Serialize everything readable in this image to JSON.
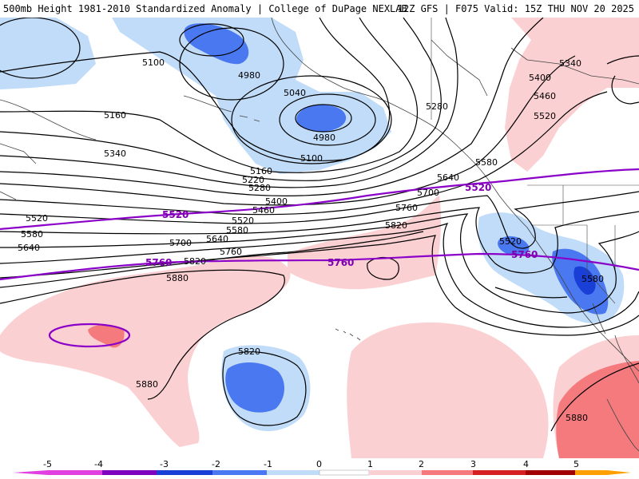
{
  "header": {
    "title_left": "500mb Height 1981-2010 Standardized Anomaly | College of DuPage NEXLAB",
    "title_right": "12Z GFS | F075 Valid: 15Z THU NOV 20 2025"
  },
  "colors": {
    "neg5": "#e040e0",
    "neg4": "#8000c0",
    "neg3": "#1a3fd6",
    "neg2": "#4a78f0",
    "neg1": "#c0dcf8",
    "zero": "#ffffff",
    "pos1": "#fbd0d2",
    "pos2": "#f47a7e",
    "pos3": "#d42020",
    "pos4": "#a00000",
    "pos5": "#ffa000",
    "contour": "#000000",
    "thick_contour": "#8a00c8",
    "coast": "#444444"
  },
  "contours": {
    "labels": [
      "5100",
      "4980",
      "4980",
      "5040",
      "5160",
      "5340",
      "5280",
      "5100",
      "5160",
      "5220",
      "5280",
      "5400",
      "5460",
      "5520",
      "5580",
      "5640",
      "5700",
      "5760",
      "5820",
      "5880",
      "5880",
      "5520",
      "5580",
      "5640",
      "5700",
      "5760",
      "5820",
      "5640",
      "5520",
      "5580",
      "5340",
      "5400",
      "5460",
      "5520",
      "5580",
      "5880",
      "5820"
    ]
  },
  "thickness": {
    "labels": [
      "5520",
      "5520",
      "5760",
      "5760",
      "5760"
    ]
  },
  "colorbar": {
    "ticks": [
      "-5",
      "-4",
      "-3",
      "-2",
      "-1",
      "0",
      "1",
      "2",
      "3",
      "4",
      "5"
    ]
  }
}
